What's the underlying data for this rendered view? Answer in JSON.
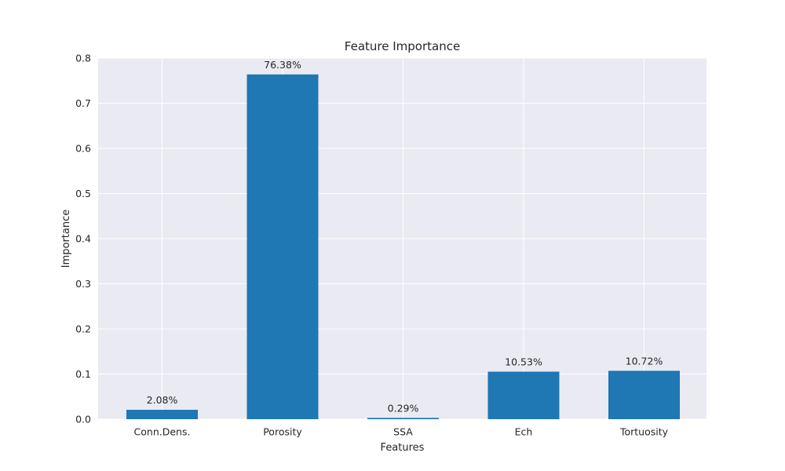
{
  "chart_data": {
    "type": "bar",
    "title": "Feature Importance",
    "xlabel": "Features",
    "ylabel": "Importance",
    "categories": [
      "Conn.Dens.",
      "Porosity",
      "SSA",
      "Ech",
      "Tortuosity"
    ],
    "values": [
      0.0208,
      0.7638,
      0.0029,
      0.1053,
      0.1072
    ],
    "data_labels": [
      "2.08%",
      "76.38%",
      "0.29%",
      "10.53%",
      "10.72%"
    ],
    "ylim": [
      0,
      0.8
    ],
    "yticks": [
      0.0,
      0.1,
      0.2,
      0.3,
      0.4,
      0.5,
      0.6,
      0.7,
      0.8
    ],
    "ytick_labels": [
      "0.0",
      "0.1",
      "0.2",
      "0.3",
      "0.4",
      "0.5",
      "0.6",
      "0.7",
      "0.8"
    ],
    "grid": true,
    "colors": {
      "bar": "#1f77b4",
      "plot_background": "#eaeaf2",
      "grid": "#ffffff",
      "text": "#262626"
    }
  }
}
